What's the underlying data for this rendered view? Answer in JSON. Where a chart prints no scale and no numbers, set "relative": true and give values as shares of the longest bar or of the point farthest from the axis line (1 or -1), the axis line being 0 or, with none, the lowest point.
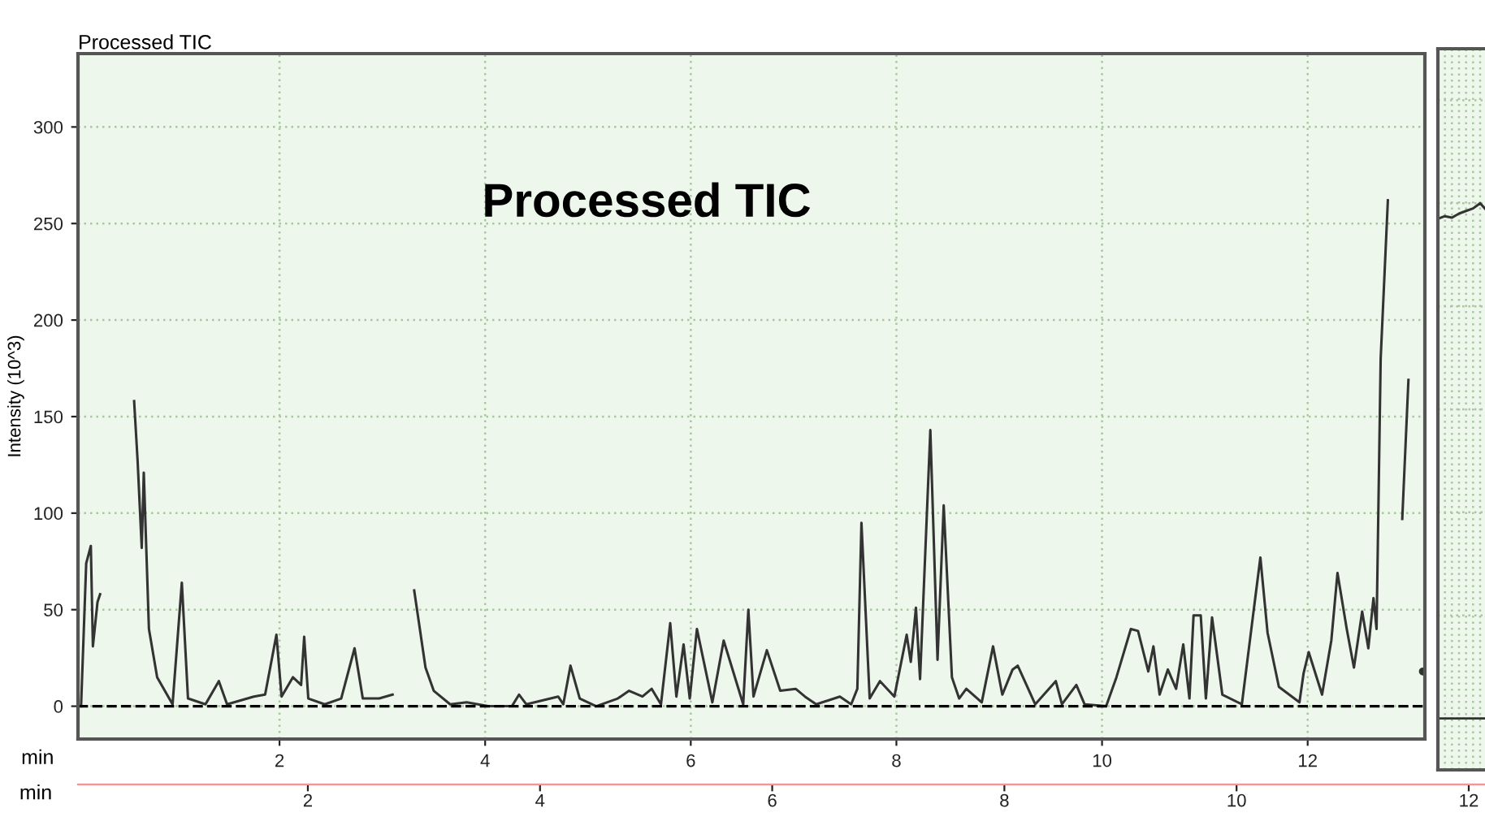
{
  "chart_data": [
    {
      "type": "line",
      "title": "Processed TIC",
      "ylabel": "Intensity (10^3)",
      "xlabel": "min",
      "x2label": "min",
      "annotations": [
        "Processed TIC"
      ],
      "xlim": [
        0.04,
        13.14
      ],
      "xticks": [
        2,
        4,
        6,
        8,
        10,
        12
      ],
      "ylim": [
        -17,
        338
      ],
      "yticks": [
        0,
        50,
        100,
        150,
        200,
        250,
        300
      ],
      "x2lim": [
        0.02,
        12.14
      ],
      "x2ticks": [
        2,
        4,
        6,
        8,
        10,
        12
      ],
      "grid": true,
      "legend": false,
      "marker": "none",
      "line_style": "solid",
      "ref_lines": [
        {
          "axis": "y",
          "value": 0,
          "label": null,
          "color": "#000000",
          "line_style": "dashed"
        }
      ],
      "series": [
        {
          "color": "#333333",
          "x": [
            0.07,
            0.12,
            0.165,
            0.185,
            0.23,
            0.255,
            0.28,
            0.545,
            0.586,
            0.62,
            0.66,
            0.68,
            0.73,
            0.81,
            0.96,
            1.05,
            1.11,
            1.28,
            1.41,
            1.49,
            1.75,
            1.86,
            1.97,
            2.02,
            2.13,
            2.21,
            2.24,
            2.28,
            2.44,
            2.6,
            2.73,
            2.81,
            2.97,
            3.1,
            3.19,
            3.25,
            3.31,
            3.42,
            3.5,
            3.66,
            3.82,
            4.03,
            4.26,
            4.33,
            4.4,
            4.71,
            4.76,
            4.83,
            4.92,
            5.08,
            5.29,
            5.4,
            5.53,
            5.62,
            5.71,
            5.8,
            5.86,
            5.93,
            5.99,
            6.06,
            6.21,
            6.32,
            6.51,
            6.56,
            6.61,
            6.74,
            6.87,
            7.02,
            7.11,
            7.22,
            7.45,
            7.56,
            7.62,
            7.66,
            7.74,
            7.84,
            7.98,
            8.1,
            8.14,
            8.19,
            8.23,
            8.33,
            8.4,
            8.46,
            8.54,
            8.61,
            8.68,
            8.83,
            8.94,
            9.03,
            9.13,
            9.18,
            9.35,
            9.55,
            9.61,
            9.75,
            9.83,
            10.04,
            10.14,
            10.28,
            10.35,
            10.45,
            10.5,
            10.56,
            10.64,
            10.72,
            10.79,
            10.85,
            10.89,
            10.96,
            11.01,
            11.07,
            11.17,
            11.36,
            11.49,
            11.54,
            11.61,
            11.72,
            11.92,
            11.96,
            12.01,
            12.14,
            12.23,
            12.29,
            12.38,
            12.45,
            12.53,
            12.59,
            12.64,
            12.67,
            12.71,
            12.78,
            12.85,
            12.9,
            12.92,
            12.98,
            13.03,
            13.07,
            13.12
          ],
          "values": [
            0,
            74,
            83,
            31,
            54,
            58,
            null,
            null,
            158,
            127,
            82,
            121,
            40,
            15,
            1,
            64,
            4,
            1,
            13,
            1,
            5,
            6,
            37,
            5,
            15,
            11,
            36,
            4,
            1,
            4,
            30,
            4,
            4,
            6,
            null,
            null,
            60,
            20,
            8,
            1,
            2,
            0,
            0,
            6,
            1,
            5,
            1,
            21,
            4,
            0,
            4,
            8,
            5,
            9,
            1,
            43,
            5,
            32,
            4,
            40,
            2,
            34,
            1,
            50,
            5,
            29,
            8,
            9,
            5,
            1,
            5,
            1,
            9,
            95,
            4,
            13,
            5,
            37,
            23,
            51,
            14,
            143,
            24,
            104,
            15,
            4,
            9,
            2,
            31,
            6,
            19,
            21,
            1,
            13,
            1,
            11,
            1,
            0,
            15,
            40,
            39,
            18,
            31,
            6,
            19,
            9,
            32,
            4,
            47,
            47,
            4,
            46,
            6,
            1,
            56,
            77,
            38,
            10,
            2,
            17,
            28,
            6,
            34,
            69,
            40,
            20,
            49,
            30,
            56,
            40,
            180,
            262,
            null,
            null,
            97,
            169,
            null,
            null,
            18
          ]
        }
      ]
    },
    {
      "type": "line",
      "relative": true,
      "categories": [
        null,
        null,
        null,
        null,
        null,
        null,
        null,
        null
      ],
      "grid": true,
      "legend": false,
      "tick_labels": false,
      "series": [
        {
          "color": "#333333",
          "values": [
            0.97,
            0.975,
            0.972,
            0.98,
            0.985,
            0.99,
            1.0,
            0.985
          ]
        }
      ]
    }
  ]
}
